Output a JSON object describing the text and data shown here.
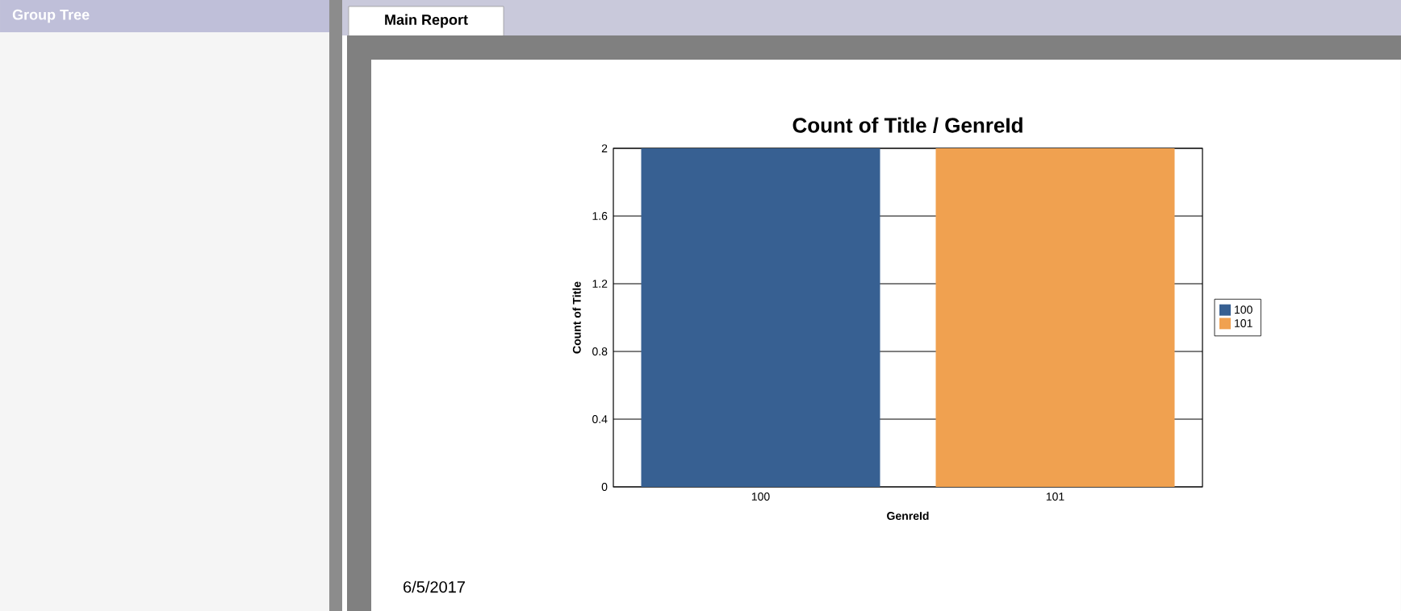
{
  "chart_data": {
    "type": "bar",
    "title": "Count of Title / GenreId",
    "xlabel": "GenreId",
    "ylabel": "Count of Title",
    "categories": [
      "100",
      "101"
    ],
    "series": [
      {
        "name": "100",
        "color": "#376092",
        "values": [
          2,
          null
        ]
      },
      {
        "name": "101",
        "color": "#f0a150",
        "values": [
          null,
          2
        ]
      }
    ],
    "ylim": [
      0,
      2
    ],
    "yticks": [
      0,
      0.4,
      0.8,
      1.2,
      1.6,
      2
    ],
    "grid": "y",
    "legend": "right",
    "annotations": [
      "Group Tree",
      "Main Report",
      "6/5/2017"
    ]
  }
}
